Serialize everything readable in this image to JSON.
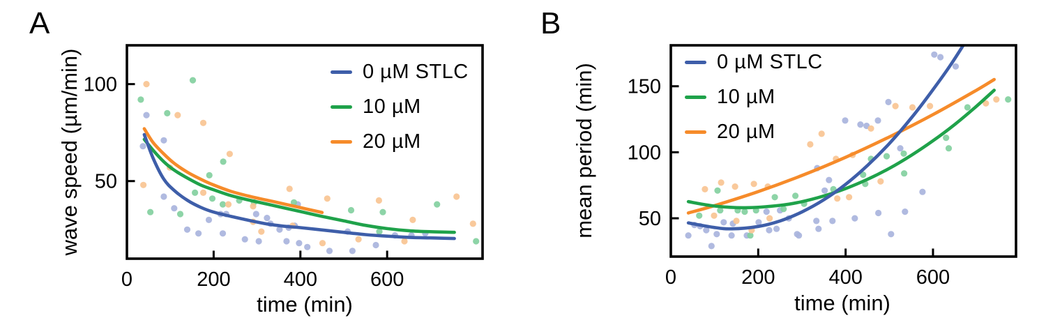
{
  "figure": {
    "panels": [
      {
        "letter": "A"
      },
      {
        "letter": "B"
      }
    ]
  },
  "colors": {
    "s0_line": "#3e5ea9",
    "s10_line": "#1fa24a",
    "s20_line": "#f68b2a",
    "s0_dot": "#a9b4dd",
    "s10_dot": "#83d09f",
    "s20_dot": "#f9c493",
    "axis": "#000000",
    "background": "#ffffff"
  },
  "legend": {
    "items": [
      {
        "label": "0 µM STLC",
        "series": "s0"
      },
      {
        "label": "10 µM",
        "series": "s10"
      },
      {
        "label": "20 µM",
        "series": "s20"
      }
    ]
  },
  "chart_data": [
    {
      "id": "A",
      "type": "scatter",
      "title": "",
      "xlabel": "time (min)",
      "ylabel": "wave speed (µm/min)",
      "xlim": [
        0,
        820
      ],
      "ylim": [
        10,
        120
      ],
      "xticks": [
        0,
        200,
        400,
        600
      ],
      "yticks": [
        50,
        100
      ],
      "grid": false,
      "legend_position": "top-right",
      "series": [
        {
          "name": "0 µM STLC",
          "key": "s0",
          "scatter": [
            [
              45,
              84
            ],
            [
              37,
              68
            ],
            [
              85,
              71
            ],
            [
              85,
              42
            ],
            [
              109,
              36
            ],
            [
              139,
              25
            ],
            [
              165,
              23
            ],
            [
              189,
              30
            ],
            [
              216,
              33
            ],
            [
              221,
              23
            ],
            [
              229,
              33
            ],
            [
              272,
              20
            ],
            [
              298,
              33
            ],
            [
              304,
              19
            ],
            [
              323,
              31
            ],
            [
              331,
              28
            ],
            [
              352,
              25
            ],
            [
              368,
              19
            ],
            [
              373,
              26
            ],
            [
              387,
              27
            ],
            [
              394,
              38
            ],
            [
              397,
              18
            ],
            [
              416,
              16
            ],
            [
              467,
              14
            ],
            [
              509,
              24
            ],
            [
              520,
              14
            ],
            [
              574,
              17
            ],
            [
              618,
              22
            ],
            [
              656,
              22
            ],
            [
              688,
              23
            ]
          ],
          "fit_curve": [
            [
              40,
              74
            ],
            [
              60,
              62
            ],
            [
              85,
              51
            ],
            [
              110,
              45
            ],
            [
              140,
              40
            ],
            [
              170,
              36.5
            ],
            [
              200,
              34
            ],
            [
              240,
              31.8
            ],
            [
              280,
              29.8
            ],
            [
              320,
              28
            ],
            [
              360,
              26.8
            ],
            [
              400,
              26
            ],
            [
              450,
              24.8
            ],
            [
              500,
              23.6
            ],
            [
              550,
              22.4
            ],
            [
              600,
              21.6
            ],
            [
              650,
              21
            ],
            [
              700,
              20.7
            ],
            [
              755,
              20.4
            ]
          ]
        },
        {
          "name": "10 µM",
          "key": "s10",
          "scatter": [
            [
              32,
              92
            ],
            [
              54,
              34
            ],
            [
              93,
              85
            ],
            [
              123,
              33
            ],
            [
              152,
              102
            ],
            [
              157,
              44
            ],
            [
              190,
              53
            ],
            [
              197,
              41
            ],
            [
              221,
              38
            ],
            [
              222,
              60
            ],
            [
              259,
              40
            ],
            [
              293,
              39
            ],
            [
              385,
              39
            ],
            [
              517,
              35
            ],
            [
              582,
              24
            ],
            [
              590,
              34
            ],
            [
              715,
              38
            ],
            [
              805,
              19
            ]
          ],
          "fit_curve": [
            [
              40,
              71.5
            ],
            [
              60,
              66
            ],
            [
              85,
              60
            ],
            [
              110,
              55.5
            ],
            [
              140,
              51.5
            ],
            [
              170,
              48
            ],
            [
              200,
              45.5
            ],
            [
              240,
              42.5
            ],
            [
              280,
              40.3
            ],
            [
              336,
              37.5
            ],
            [
              400,
              34.3
            ],
            [
              450,
              31.8
            ],
            [
              500,
              29.5
            ],
            [
              550,
              27.2
            ],
            [
              600,
              25.5
            ],
            [
              650,
              24.4
            ],
            [
              700,
              23.9
            ],
            [
              755,
              23.6
            ]
          ]
        },
        {
          "name": "20 µM",
          "key": "s20",
          "scatter": [
            [
              45,
              100
            ],
            [
              38,
              48
            ],
            [
              99,
              57
            ],
            [
              117,
              84
            ],
            [
              176,
              80
            ],
            [
              176,
              44
            ],
            [
              234,
              38
            ],
            [
              237,
              64
            ],
            [
              291,
              37
            ],
            [
              291,
              29
            ],
            [
              310,
              24
            ],
            [
              375,
              46
            ],
            [
              382,
              27
            ],
            [
              451,
              18
            ],
            [
              462,
              41
            ],
            [
              534,
              20
            ],
            [
              581,
              40
            ],
            [
              640,
              19
            ],
            [
              659,
              30
            ],
            [
              760,
              42
            ],
            [
              798,
              28
            ]
          ],
          "fit_curve": [
            [
              40,
              77
            ],
            [
              60,
              70
            ],
            [
              85,
              64
            ],
            [
              110,
              59
            ],
            [
              140,
              54.5
            ],
            [
              170,
              51
            ],
            [
              200,
              48
            ],
            [
              240,
              44.7
            ],
            [
              280,
              42.3
            ],
            [
              336,
              39.5
            ],
            [
              400,
              36.3
            ],
            [
              450,
              33.8
            ]
          ]
        }
      ]
    },
    {
      "id": "B",
      "type": "scatter",
      "title": "",
      "xlabel": "time (min)",
      "ylabel": "mean period (min)",
      "xlim": [
        0,
        790
      ],
      "ylim": [
        21,
        181
      ],
      "xticks": [
        0,
        200,
        400,
        600
      ],
      "yticks": [
        50,
        100,
        150
      ],
      "grid": false,
      "legend_position": "top-left",
      "series": [
        {
          "name": "0 µM STLC",
          "key": "s0",
          "scatter": [
            [
              40,
              37
            ],
            [
              54,
              45
            ],
            [
              67,
              44
            ],
            [
              81,
              41
            ],
            [
              93,
              29
            ],
            [
              105,
              38
            ],
            [
              121,
              47
            ],
            [
              139,
              37
            ],
            [
              142,
              46
            ],
            [
              174,
              37
            ],
            [
              201,
              47
            ],
            [
              219,
              55
            ],
            [
              225,
              41
            ],
            [
              242,
              42
            ],
            [
              250,
              56
            ],
            [
              270,
              50
            ],
            [
              289,
              38
            ],
            [
              293,
              37
            ],
            [
              333,
              48
            ],
            [
              335,
              88
            ],
            [
              338,
              42
            ],
            [
              352,
              71
            ],
            [
              362,
              79
            ],
            [
              370,
              48
            ],
            [
              399,
              124
            ],
            [
              421,
              50
            ],
            [
              434,
              121
            ],
            [
              448,
              120
            ],
            [
              474,
              124
            ],
            [
              475,
              54
            ],
            [
              498,
              138
            ],
            [
              504,
              38
            ],
            [
              525,
              103
            ],
            [
              536,
              55
            ],
            [
              576,
              70
            ],
            [
              603,
              174
            ],
            [
              617,
              172
            ],
            [
              652,
              165
            ]
          ],
          "fit_curve": [
            [
              40,
              46.5
            ],
            [
              100,
              43
            ],
            [
              140,
              42
            ],
            [
              200,
              43.8
            ],
            [
              250,
              48
            ],
            [
              300,
              54.8
            ],
            [
              350,
              64
            ],
            [
              400,
              75.7
            ],
            [
              450,
              90
            ],
            [
              500,
              106.6
            ],
            [
              550,
              125.8
            ],
            [
              600,
              147.4
            ],
            [
              640,
              166
            ],
            [
              675,
              184
            ]
          ]
        },
        {
          "name": "10 µM",
          "key": "s10",
          "scatter": [
            [
              65,
              52
            ],
            [
              107,
              71
            ],
            [
              113,
              56
            ],
            [
              153,
              56
            ],
            [
              169,
              55
            ],
            [
              182,
              37
            ],
            [
              195,
              56
            ],
            [
              238,
              66
            ],
            [
              258,
              57
            ],
            [
              285,
              67
            ],
            [
              305,
              61
            ],
            [
              372,
              72
            ],
            [
              440,
              83
            ],
            [
              445,
              76
            ],
            [
              458,
              95
            ],
            [
              494,
              97
            ],
            [
              533,
              99
            ],
            [
              534,
              84
            ],
            [
              630,
              111
            ],
            [
              636,
              103
            ],
            [
              679,
              134
            ],
            [
              772,
              140
            ]
          ],
          "fit_curve": [
            [
              40,
              62.6
            ],
            [
              100,
              59.3
            ],
            [
              170,
              58
            ],
            [
              250,
              59.8
            ],
            [
              300,
              62.6
            ],
            [
              350,
              66.9
            ],
            [
              400,
              72.5
            ],
            [
              450,
              79.5
            ],
            [
              500,
              87.8
            ],
            [
              550,
              97.6
            ],
            [
              600,
              108.7
            ],
            [
              650,
              121.1
            ],
            [
              700,
              135
            ],
            [
              740,
              147
            ]
          ]
        },
        {
          "name": "20 µM",
          "key": "s20",
          "scatter": [
            [
              78,
              72
            ],
            [
              99,
              52
            ],
            [
              115,
              77
            ],
            [
              147,
              74
            ],
            [
              150,
              48
            ],
            [
              185,
              41
            ],
            [
              190,
              76
            ],
            [
              222,
              74
            ],
            [
              226,
              50
            ],
            [
              319,
              106
            ],
            [
              345,
              114
            ],
            [
              378,
              95
            ],
            [
              381,
              65
            ],
            [
              408,
              66
            ],
            [
              416,
              98
            ],
            [
              458,
              118
            ],
            [
              480,
              78
            ],
            [
              514,
              135
            ],
            [
              553,
              134
            ],
            [
              593,
              135
            ],
            [
              721,
              137
            ],
            [
              745,
              140
            ]
          ],
          "fit_curve": [
            [
              40,
              54
            ],
            [
              100,
              59.6
            ],
            [
              200,
              70.2
            ],
            [
              300,
              82.4
            ],
            [
              400,
              96.2
            ],
            [
              500,
              111.6
            ],
            [
              600,
              128.5
            ],
            [
              700,
              147.1
            ],
            [
              740,
              155.1
            ]
          ]
        }
      ]
    }
  ]
}
